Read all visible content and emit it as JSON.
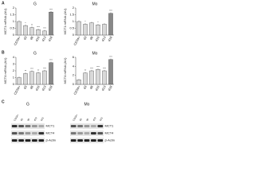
{
  "chart_data": [
    {
      "type": "bar",
      "panel_label": "A",
      "title": "G",
      "y_label": "MCT1 mRNA (AU)",
      "categories": [
        "CD34+",
        "d3",
        "d6",
        "d10",
        "d13",
        "d18"
      ],
      "values": [
        1,
        0.7,
        0.55,
        0.4,
        0.3,
        1.7
      ],
      "significance": [
        null,
        "*",
        "**",
        "***",
        "***",
        "***"
      ],
      "ylim": [
        0,
        2
      ],
      "yticks": [
        0,
        0.5,
        1,
        1.5,
        2
      ],
      "color": "#d9d9d9"
    },
    {
      "type": "bar",
      "title": "Mo",
      "y_label": "MCT1 mRNA (AU)",
      "categories": [
        "CD34+",
        "d3",
        "d6",
        "d10",
        "d13",
        "d18"
      ],
      "values": [
        1,
        0.8,
        0.9,
        0.75,
        0.8,
        1.6
      ],
      "significance": [
        null,
        "*",
        null,
        "*",
        null,
        "***"
      ],
      "ylim": [
        0,
        2
      ],
      "yticks": [
        0,
        0.5,
        1,
        1.5,
        2
      ],
      "color": "#d9d9d9"
    },
    {
      "type": "bar",
      "panel_label": "B",
      "title": "G",
      "y_label": "MCT4 mRNA (AU)",
      "categories": [
        "CD34+",
        "d3",
        "d6",
        "d10",
        "d13",
        "d18"
      ],
      "values": [
        1,
        1.6,
        1.9,
        1.7,
        2.0,
        3.2
      ],
      "significance": [
        null,
        "**",
        "***",
        "**",
        "***",
        "***"
      ],
      "ylim": [
        0,
        4
      ],
      "yticks": [
        0,
        1,
        2,
        3,
        4
      ],
      "color": "#d9d9d9"
    },
    {
      "type": "bar",
      "title": "Mo",
      "y_label": "MCT4 mRNA (AU)",
      "categories": [
        "CD34+",
        "d3",
        "d6",
        "d10",
        "d13",
        "d18"
      ],
      "values": [
        1,
        2.5,
        3.0,
        3.3,
        3.0,
        5.5
      ],
      "significance": [
        null,
        "**",
        "***",
        "***",
        "***",
        "***"
      ],
      "ylim": [
        0,
        6
      ],
      "yticks": [
        0,
        2,
        4,
        6
      ],
      "color": "#d9d9d9"
    }
  ],
  "blot": {
    "panel_label": "C",
    "groups": [
      {
        "title": "G",
        "lanes": [
          "CD34+",
          "d3",
          "d6",
          "d10",
          "d13"
        ]
      },
      {
        "title": "Mo",
        "lanes": [
          "CD34+",
          "d3",
          "d6",
          "d10",
          "d13"
        ]
      }
    ],
    "rows": [
      "MCT1",
      "MCT4",
      "β-Actin"
    ]
  }
}
